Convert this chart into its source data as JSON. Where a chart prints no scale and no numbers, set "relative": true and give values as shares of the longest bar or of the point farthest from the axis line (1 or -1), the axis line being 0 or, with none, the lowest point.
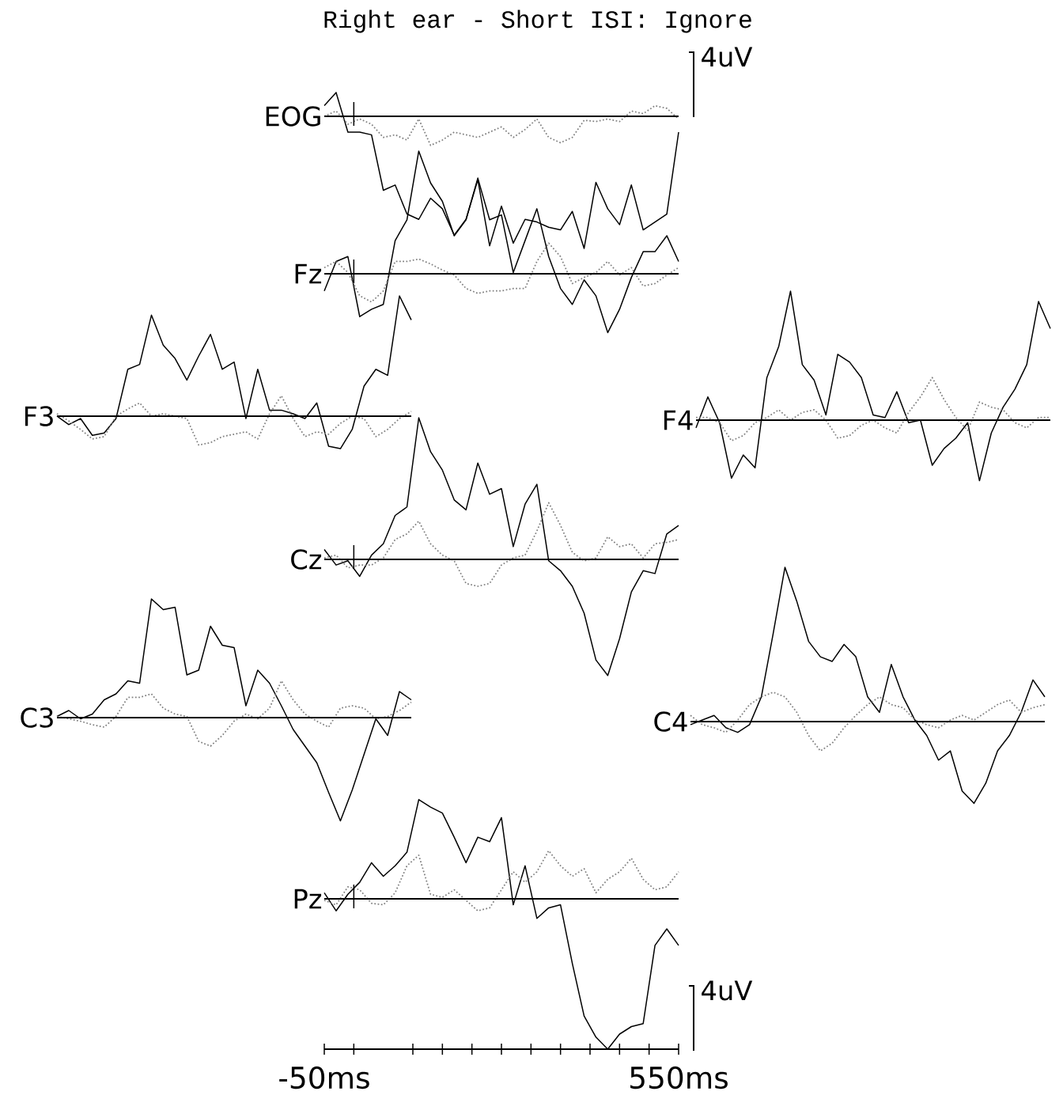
{
  "chart_data": [
    {
      "type": "line",
      "title": "Right ear - Short ISI: Ignore",
      "ylabel": "EOG",
      "relative": true,
      "tick_labels": false,
      "xlim": [
        -50,
        550
      ],
      "annotations": [
        "4uV"
      ],
      "ref_lines": [
        {
          "axis": "x",
          "value": 0
        }
      ],
      "x": [
        -50,
        -30,
        -10,
        10,
        30,
        50,
        70,
        90,
        110,
        130,
        150,
        170,
        190,
        210,
        230,
        250,
        270,
        290,
        310,
        330,
        350,
        370,
        390,
        410,
        430,
        450,
        470,
        490,
        510,
        530,
        550
      ],
      "series": [
        {
          "color": "#000000",
          "line_style": "solid",
          "values": [
            0.08,
            0.18,
            -0.12,
            -0.12,
            -0.14,
            -0.56,
            -0.52,
            -0.74,
            -0.78,
            -0.62,
            -0.7,
            -0.9,
            -0.78,
            -0.48,
            -0.98,
            -0.68,
            -0.96,
            -0.78,
            -0.8,
            -0.84,
            -0.86,
            -0.72,
            -1,
            -0.5,
            -0.7,
            -0.82,
            -0.52,
            -0.86,
            -0.8,
            -0.74,
            -0.12
          ]
        },
        {
          "color": "#808080",
          "line_style": "dotted",
          "values": [
            0,
            0.04,
            -0.06,
            -0.02,
            -0.06,
            -0.16,
            -0.14,
            -0.18,
            -0.02,
            -0.22,
            -0.18,
            -0.12,
            -0.14,
            -0.16,
            -0.12,
            -0.08,
            -0.16,
            -0.1,
            -0.02,
            -0.16,
            -0.2,
            -0.16,
            -0.03,
            -0.04,
            -0.02,
            -0.04,
            0.04,
            0.02,
            0.08,
            0.06,
            -0.02
          ]
        }
      ]
    },
    {
      "type": "line",
      "ylabel": "Fz",
      "relative": true,
      "tick_labels": false,
      "xlim": [
        -50,
        550
      ],
      "ref_lines": [
        {
          "axis": "x",
          "value": 0
        }
      ],
      "x": [
        -50,
        -30,
        -10,
        10,
        30,
        50,
        70,
        90,
        110,
        130,
        150,
        170,
        190,
        210,
        230,
        250,
        270,
        290,
        310,
        330,
        350,
        370,
        390,
        410,
        430,
        450,
        470,
        490,
        510,
        530,
        550
      ],
      "series": [
        {
          "color": "#000000",
          "line_style": "solid",
          "values": [
            -0.14,
            0.1,
            0.14,
            -0.35,
            -0.29,
            -0.25,
            0.27,
            0.44,
            1,
            0.74,
            0.59,
            0.31,
            0.44,
            0.78,
            0.44,
            0.48,
            0.01,
            0.27,
            0.53,
            0.14,
            -0.12,
            -0.25,
            -0.05,
            -0.18,
            -0.48,
            -0.29,
            -0.03,
            0.18,
            0.18,
            0.31,
            0.1
          ]
        },
        {
          "color": "#808080",
          "line_style": "dotted",
          "values": [
            0.05,
            0.1,
            0.01,
            -0.18,
            -0.23,
            -0.14,
            0.1,
            0.1,
            0.12,
            0.08,
            0.03,
            -0.01,
            -0.12,
            -0.16,
            -0.14,
            -0.14,
            -0.12,
            -0.12,
            0.1,
            0.25,
            0.14,
            -0.08,
            -0.03,
            0.01,
            0.1,
            -0.01,
            0.05,
            -0.1,
            -0.08,
            -0.01,
            0.05
          ]
        }
      ]
    },
    {
      "type": "line",
      "ylabel": "F3",
      "relative": true,
      "categories": [
        null,
        null,
        null,
        null,
        null,
        null,
        null,
        null,
        null,
        null,
        null,
        null,
        null,
        null,
        null,
        null,
        null,
        null,
        null,
        null,
        null,
        null,
        null,
        null,
        null,
        null,
        null,
        null,
        null,
        null,
        null
      ],
      "series": [
        {
          "color": "#000000",
          "line_style": "solid",
          "values": [
            0,
            -0.07,
            -0.02,
            -0.16,
            -0.14,
            -0.02,
            0.39,
            0.43,
            0.84,
            0.59,
            0.48,
            0.3,
            0.5,
            0.68,
            0.39,
            0.45,
            -0.02,
            0.39,
            0.05,
            0.05,
            0.02,
            -0.02,
            0.11,
            -0.25,
            -0.27,
            -0.11,
            0.25,
            0.39,
            0.34,
            1,
            0.8
          ]
        },
        {
          "color": "#808080",
          "line_style": "dotted",
          "values": [
            0.02,
            -0.04,
            -0.11,
            -0.19,
            -0.17,
            0,
            0.06,
            0.11,
            0,
            0.02,
            0,
            -0.02,
            -0.24,
            -0.22,
            -0.17,
            -0.15,
            -0.13,
            -0.19,
            0.02,
            0.17,
            -0.02,
            -0.17,
            -0.13,
            -0.15,
            -0.06,
            0,
            -0.02,
            -0.17,
            -0.11,
            -0.02,
            0.04
          ]
        }
      ]
    },
    {
      "type": "line",
      "ylabel": "F4",
      "relative": true,
      "categories": [
        null,
        null,
        null,
        null,
        null,
        null,
        null,
        null,
        null,
        null,
        null,
        null,
        null,
        null,
        null,
        null,
        null,
        null,
        null,
        null,
        null,
        null,
        null,
        null,
        null,
        null,
        null,
        null,
        null,
        null,
        null
      ],
      "series": [
        {
          "color": "#000000",
          "line_style": "solid",
          "values": [
            -0.06,
            0.18,
            -0.02,
            -0.45,
            -0.27,
            -0.37,
            0.33,
            0.57,
            1,
            0.43,
            0.31,
            0.04,
            0.51,
            0.45,
            0.33,
            0.04,
            0.02,
            0.22,
            -0.02,
            0,
            -0.35,
            -0.22,
            -0.14,
            -0.02,
            -0.47,
            -0.1,
            0.1,
            0.24,
            0.43,
            0.92,
            0.71
          ]
        },
        {
          "color": "#808080",
          "line_style": "dotted",
          "values": [
            0.02,
            0.02,
            -0.02,
            -0.16,
            -0.12,
            -0.02,
            0.02,
            0.08,
            0,
            0.06,
            0.08,
            0,
            -0.14,
            -0.12,
            -0.04,
            0,
            -0.06,
            -0.1,
            0.06,
            0.18,
            0.33,
            0.16,
            0.02,
            -0.08,
            0.14,
            0.1,
            0.08,
            -0.02,
            -0.06,
            0.02,
            0.02
          ]
        }
      ]
    },
    {
      "type": "line",
      "ylabel": "Cz",
      "relative": true,
      "tick_labels": false,
      "xlim": [
        -50,
        550
      ],
      "ref_lines": [
        {
          "axis": "x",
          "value": 0
        }
      ],
      "x": [
        -50,
        -30,
        -10,
        10,
        30,
        50,
        70,
        90,
        110,
        130,
        150,
        170,
        190,
        210,
        230,
        250,
        270,
        290,
        310,
        330,
        350,
        370,
        390,
        410,
        430,
        450,
        470,
        490,
        510,
        530,
        550
      ],
      "series": [
        {
          "color": "#000000",
          "line_style": "solid",
          "values": [
            0.07,
            -0.04,
            -0.01,
            -0.12,
            0.03,
            0.11,
            0.31,
            0.37,
            1,
            0.76,
            0.63,
            0.42,
            0.35,
            0.68,
            0.46,
            0.5,
            0.09,
            0.39,
            0.53,
            -0.01,
            -0.08,
            -0.19,
            -0.38,
            -0.71,
            -0.82,
            -0.56,
            -0.23,
            -0.08,
            -0.1,
            0.18,
            0.24
          ]
        },
        {
          "color": "#808080",
          "line_style": "dotted",
          "values": [
            0.01,
            0.03,
            -0.06,
            -0.04,
            -0.04,
            0.01,
            0.14,
            0.18,
            0.27,
            0.11,
            0.03,
            -0.01,
            -0.17,
            -0.19,
            -0.17,
            -0.04,
            0.01,
            0.03,
            0.2,
            0.4,
            0.24,
            0.05,
            -0.01,
            0.01,
            0.16,
            0.09,
            0.11,
            0.01,
            0.11,
            0.12,
            0.14
          ]
        }
      ]
    },
    {
      "type": "line",
      "ylabel": "C3",
      "relative": true,
      "categories": [
        null,
        null,
        null,
        null,
        null,
        null,
        null,
        null,
        null,
        null,
        null,
        null,
        null,
        null,
        null,
        null,
        null,
        null,
        null,
        null,
        null,
        null,
        null,
        null,
        null,
        null,
        null,
        null,
        null,
        null,
        null
      ],
      "series": [
        {
          "color": "#000000",
          "line_style": "solid",
          "values": [
            0.01,
            0.06,
            -0.01,
            0.03,
            0.15,
            0.2,
            0.31,
            0.29,
            1,
            0.91,
            0.93,
            0.36,
            0.4,
            0.77,
            0.61,
            0.59,
            0.1,
            0.4,
            0.29,
            0.1,
            -0.1,
            -0.24,
            -0.38,
            -0.63,
            -0.87,
            -0.61,
            -0.31,
            -0.01,
            -0.15,
            0.22,
            0.15
          ]
        },
        {
          "color": "#808080",
          "line_style": "dotted",
          "values": [
            0.01,
            -0.01,
            -0.03,
            -0.06,
            -0.08,
            0.01,
            0.17,
            0.17,
            0.2,
            0.08,
            0.03,
            0.01,
            -0.2,
            -0.24,
            -0.15,
            -0.03,
            0.03,
            -0.01,
            0.08,
            0.31,
            0.15,
            0.03,
            -0.03,
            -0.08,
            0.08,
            0.1,
            0.08,
            -0.01,
            0.01,
            0.06,
            0.13
          ]
        }
      ]
    },
    {
      "type": "line",
      "ylabel": "C4",
      "relative": true,
      "categories": [
        null,
        null,
        null,
        null,
        null,
        null,
        null,
        null,
        null,
        null,
        null,
        null,
        null,
        null,
        null,
        null,
        null,
        null,
        null,
        null,
        null,
        null,
        null,
        null,
        null,
        null,
        null,
        null,
        null,
        null,
        null
      ],
      "series": [
        {
          "color": "#000000",
          "line_style": "solid",
          "values": [
            -0.02,
            0.01,
            0.04,
            -0.04,
            -0.07,
            -0.02,
            0.16,
            0.57,
            1,
            0.78,
            0.52,
            0.42,
            0.39,
            0.5,
            0.42,
            0.16,
            0.06,
            0.37,
            0.16,
            0.01,
            -0.09,
            -0.25,
            -0.19,
            -0.45,
            -0.53,
            -0.4,
            -0.19,
            -0.09,
            0.06,
            0.27,
            0.16
          ]
        },
        {
          "color": "#808080",
          "line_style": "dotted",
          "values": [
            0.04,
            -0.02,
            -0.04,
            -0.07,
            0.01,
            0.11,
            0.16,
            0.19,
            0.16,
            0.06,
            -0.09,
            -0.19,
            -0.14,
            -0.04,
            0.04,
            0.11,
            0.16,
            0.11,
            0.09,
            0.01,
            -0.02,
            -0.04,
            0.01,
            0.04,
            0.01,
            0.06,
            0.11,
            0.14,
            0.06,
            0.09,
            0.11
          ]
        }
      ]
    },
    {
      "type": "line",
      "ylabel": "Pz",
      "relative": true,
      "tick_labels": "x",
      "xlim": [
        -50,
        550
      ],
      "annotations": [
        "4uV"
      ],
      "ref_lines": [
        {
          "axis": "x",
          "value": 0
        }
      ],
      "xticks": [
        {
          "value": -50,
          "label": "-50ms"
        },
        {
          "value": 0,
          "label": null
        },
        {
          "value": 100,
          "label": null
        },
        {
          "value": 150,
          "label": null
        },
        {
          "value": 200,
          "label": null
        },
        {
          "value": 250,
          "label": null
        },
        {
          "value": 300,
          "label": null
        },
        {
          "value": 350,
          "label": null
        },
        {
          "value": 400,
          "label": null
        },
        {
          "value": 450,
          "label": null
        },
        {
          "value": 500,
          "label": null
        },
        {
          "value": 550,
          "label": "550ms"
        }
      ],
      "x": [
        -50,
        -30,
        -10,
        10,
        30,
        50,
        70,
        90,
        110,
        130,
        150,
        170,
        190,
        210,
        230,
        250,
        270,
        290,
        310,
        330,
        350,
        370,
        390,
        410,
        430,
        450,
        470,
        490,
        510,
        530,
        550
      ],
      "series": [
        {
          "color": "#000000",
          "line_style": "solid",
          "values": [
            0.04,
            -0.08,
            0.03,
            0.11,
            0.24,
            0.15,
            0.22,
            0.31,
            0.66,
            0.61,
            0.57,
            0.41,
            0.24,
            0.41,
            0.38,
            0.54,
            -0.04,
            0.22,
            -0.13,
            -0.06,
            -0.04,
            -0.43,
            -0.78,
            -0.92,
            -1,
            -0.9,
            -0.85,
            -0.83,
            -0.31,
            -0.2,
            -0.31
          ]
        },
        {
          "color": "#808080",
          "line_style": "dotted",
          "values": [
            -0.01,
            -0.04,
            0.08,
            0.06,
            -0.03,
            -0.04,
            0.04,
            0.22,
            0.29,
            0.03,
            0.01,
            0.06,
            -0.01,
            -0.08,
            -0.06,
            0.06,
            0.18,
            0.11,
            0.18,
            0.32,
            0.22,
            0.15,
            0.2,
            0.04,
            0.13,
            0.18,
            0.27,
            0.13,
            0.06,
            0.08,
            0.18
          ]
        }
      ]
    }
  ]
}
